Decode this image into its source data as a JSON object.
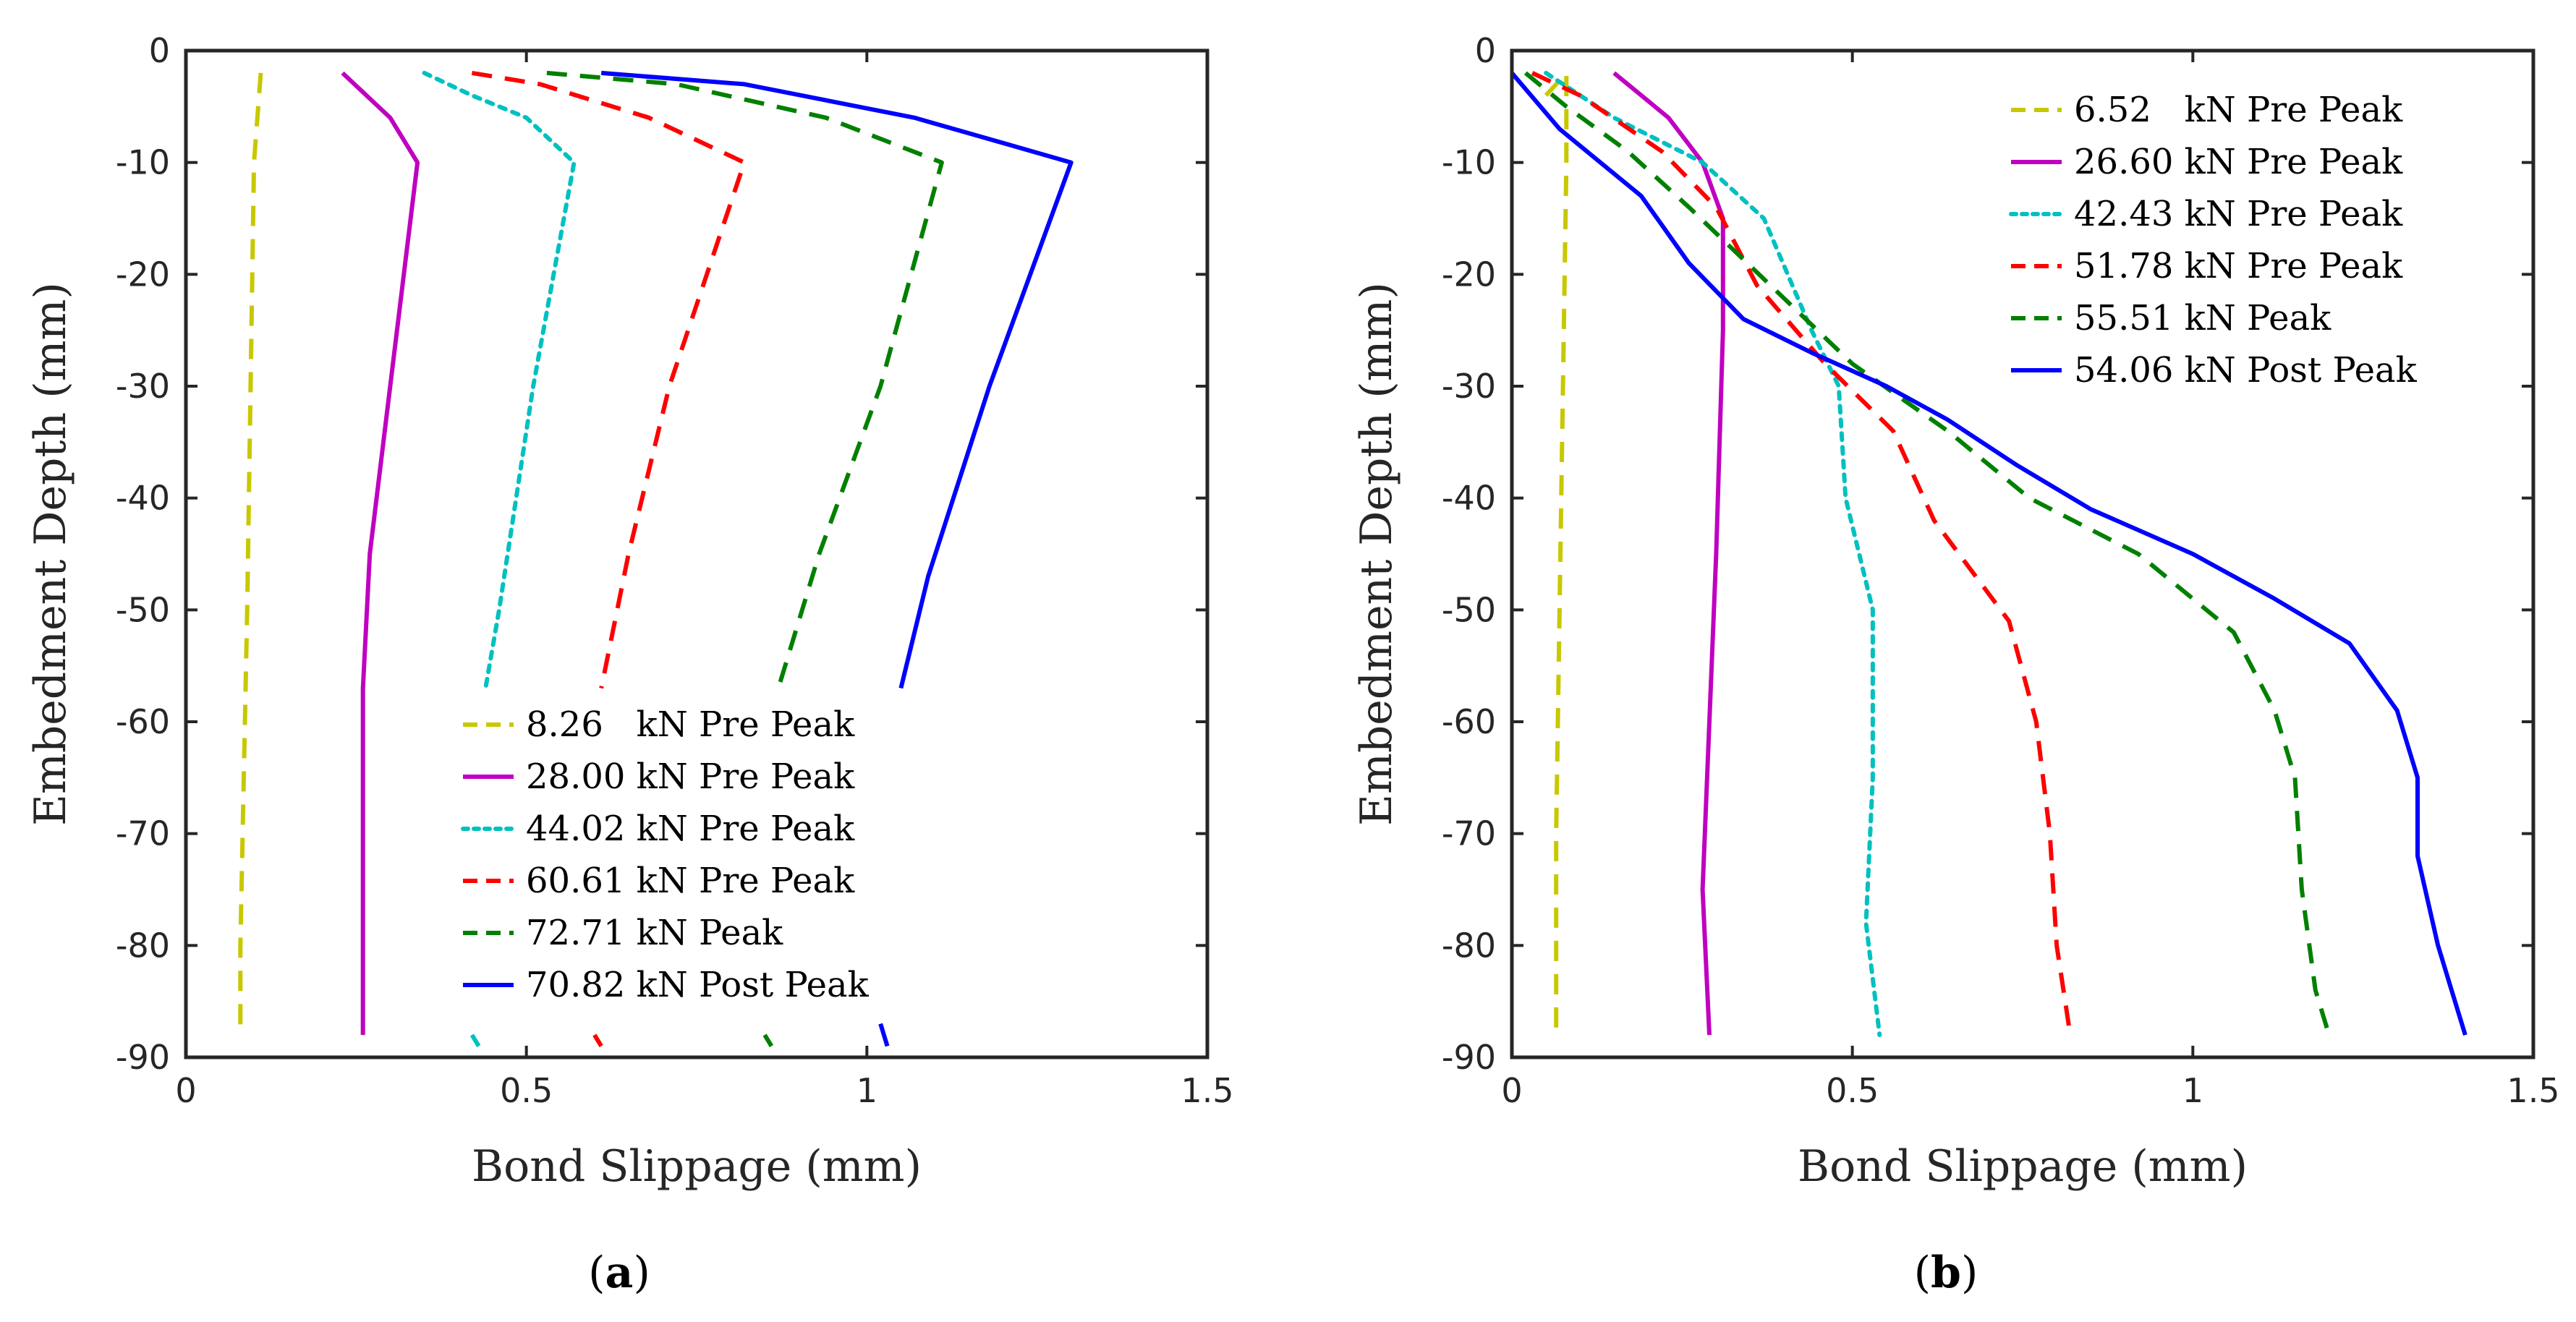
{
  "chart_data": [
    {
      "type": "line",
      "panel_label": "a",
      "xlabel": "Bond Slippage (mm)",
      "ylabel": "Embedment Depth (mm)",
      "xlim": [
        0,
        1.5
      ],
      "ylim": [
        -90,
        0
      ],
      "xticks": [
        0,
        0.5,
        1,
        1.5
      ],
      "xtick_labels": [
        "0",
        "0.5",
        "1",
        "1.5"
      ],
      "yticks": [
        0,
        -10,
        -20,
        -30,
        -40,
        -50,
        -60,
        -70,
        -80,
        -90
      ],
      "ytick_labels": [
        "0",
        "-10",
        "-20",
        "-30",
        "-40",
        "-50",
        "-60",
        "-70",
        "-80",
        "-90"
      ],
      "legend_location": "bottom-center",
      "series": [
        {
          "name": "8.26   kN Pre Peak",
          "color": "#c8c800",
          "style": "dashed",
          "x": [
            0.11,
            0.1,
            0.095,
            0.09,
            0.085,
            0.08,
            0.08
          ],
          "y": [
            -2,
            -10,
            -30,
            -50,
            -65,
            -80,
            -88
          ]
        },
        {
          "name": "28.00 kN Pre Peak",
          "color": "#c000c0",
          "style": "solid",
          "x": [
            0.23,
            0.3,
            0.34,
            0.3,
            0.27,
            0.26,
            0.26,
            0.26
          ],
          "y": [
            -2,
            -6,
            -10,
            -30,
            -45,
            -57,
            -70,
            -88
          ]
        },
        {
          "name": "44.02 kN Pre Peak",
          "color": "#00c0c0",
          "style": "dotted",
          "x": [
            0.35,
            0.42,
            0.5,
            0.57,
            0.51,
            0.46,
            0.44
          ],
          "y": [
            -2,
            -4,
            -6,
            -10,
            -30,
            -50,
            -57
          ]
        },
        {
          "name": "60.61 kN Pre Peak",
          "color": "#ff0000",
          "style": "dashed",
          "x": [
            0.42,
            0.52,
            0.68,
            0.82,
            0.71,
            0.65,
            0.61
          ],
          "y": [
            -2,
            -3,
            -6,
            -10,
            -30,
            -45,
            -57
          ]
        },
        {
          "name": "72.71 kN Peak",
          "color": "#008000",
          "style": "dashed",
          "x": [
            0.53,
            0.72,
            0.94,
            1.11,
            1.02,
            0.93,
            0.87
          ],
          "y": [
            -2,
            -3,
            -6,
            -10,
            -30,
            -45,
            -57
          ]
        },
        {
          "name": "70.82 kN Post Peak",
          "color": "#0000ff",
          "style": "solid",
          "x": [
            0.61,
            0.82,
            1.07,
            1.3,
            1.18,
            1.09,
            1.05
          ],
          "y": [
            -2,
            -3,
            -6,
            -10,
            -30,
            -47,
            -57
          ]
        }
      ],
      "stray_marks": [
        {
          "series": 2,
          "x": [
            0.42,
            0.43
          ],
          "y": [
            -88,
            -89
          ]
        },
        {
          "series": 3,
          "x": [
            0.6,
            0.61
          ],
          "y": [
            -88,
            -89
          ]
        },
        {
          "series": 4,
          "x": [
            0.85,
            0.86
          ],
          "y": [
            -88,
            -89
          ]
        },
        {
          "series": 5,
          "x": [
            1.02,
            1.03
          ],
          "y": [
            -87,
            -89
          ]
        }
      ]
    },
    {
      "type": "line",
      "panel_label": "b",
      "xlabel": "Bond Slippage (mm)",
      "ylabel": "Embedment Depth (mm)",
      "xlim": [
        0,
        1.5
      ],
      "ylim": [
        -90,
        0
      ],
      "xticks": [
        0,
        0.5,
        1,
        1.5
      ],
      "xtick_labels": [
        "0",
        "0.5",
        "1",
        "1.5"
      ],
      "yticks": [
        0,
        -10,
        -20,
        -30,
        -40,
        -50,
        -60,
        -70,
        -80,
        -90
      ],
      "ytick_labels": [
        "0",
        "-10",
        "-20",
        "-30",
        "-40",
        "-50",
        "-60",
        "-70",
        "-80",
        "-90"
      ],
      "legend_location": "top-right",
      "series": [
        {
          "name": "6.52   kN Pre Peak",
          "color": "#c8c800",
          "style": "dashed",
          "x": [
            0.05,
            0.08,
            0.08,
            0.075,
            0.07,
            0.065,
            0.065
          ],
          "y": [
            -4,
            -2,
            -10,
            -30,
            -50,
            -70,
            -88
          ]
        },
        {
          "name": "26.60 kN Pre Peak",
          "color": "#c000c0",
          "style": "solid",
          "x": [
            0.15,
            0.23,
            0.28,
            0.31,
            0.31,
            0.3,
            0.29,
            0.28,
            0.29
          ],
          "y": [
            -2,
            -6,
            -10,
            -15,
            -25,
            -45,
            -60,
            -75,
            -88
          ]
        },
        {
          "name": "42.43 kN Pre Peak",
          "color": "#00c0c0",
          "style": "dotted",
          "x": [
            0.05,
            0.15,
            0.28,
            0.37,
            0.44,
            0.48,
            0.49,
            0.53,
            0.53,
            0.52,
            0.54
          ],
          "y": [
            -2,
            -6,
            -10,
            -15,
            -25,
            -30,
            -40,
            -50,
            -65,
            -78,
            -88
          ]
        },
        {
          "name": "51.78 kN Pre Peak",
          "color": "#ff0000",
          "style": "dashed",
          "x": [
            0.03,
            0.1,
            0.22,
            0.3,
            0.36,
            0.46,
            0.56,
            0.62,
            0.73,
            0.77,
            0.79,
            0.8,
            0.82
          ],
          "y": [
            -2,
            -4,
            -9,
            -14,
            -21,
            -28,
            -34,
            -42,
            -51,
            -60,
            -70,
            -80,
            -88
          ]
        },
        {
          "name": "55.51 kN Peak",
          "color": "#008000",
          "style": "dashed",
          "x": [
            0.02,
            0.08,
            0.17,
            0.26,
            0.38,
            0.5,
            0.64,
            0.76,
            0.92,
            1.06,
            1.12,
            1.15,
            1.16,
            1.18,
            1.2
          ],
          "y": [
            -2,
            -5,
            -9,
            -14,
            -21,
            -28,
            -34,
            -40,
            -45,
            -52,
            -59,
            -65,
            -75,
            -84,
            -88
          ]
        },
        {
          "name": "54.06 kN Post Peak",
          "color": "#0000ff",
          "style": "solid",
          "x": [
            0.0,
            0.07,
            0.19,
            0.26,
            0.34,
            0.44,
            0.55,
            0.64,
            0.74,
            0.85,
            1.0,
            1.12,
            1.23,
            1.3,
            1.33,
            1.33,
            1.36,
            1.38,
            1.4
          ],
          "y": [
            -2,
            -7,
            -13,
            -19,
            -24,
            -27,
            -30,
            -33,
            -37,
            -41,
            -45,
            -49,
            -53,
            -59,
            -65,
            -72,
            -80,
            -84,
            -88
          ]
        }
      ]
    }
  ]
}
